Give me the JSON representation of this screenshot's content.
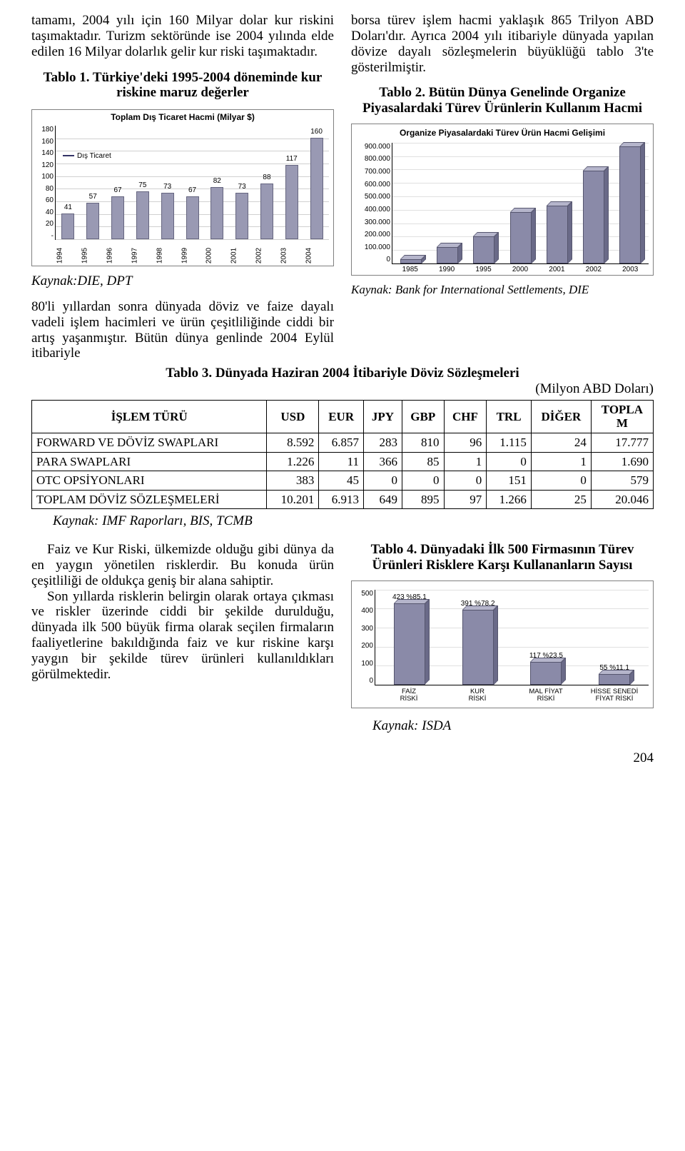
{
  "left_intro": "tamamı, 2004 yılı için 160 Milyar dolar kur riskini taşımaktadır. Turizm sektöründe ise 2004 yılında elde edilen 16 Milyar dolarlık gelir kur riski taşımaktadır.",
  "tablo1_heading": "Tablo 1. Türkiye'deki 1995-2004 döneminde kur riskine maruz değerler",
  "chart1": {
    "title": "Toplam Dış Ticaret Hacmi (Milyar $)",
    "legend": "Dış Ticaret",
    "ymax": 180,
    "ystep": 20,
    "y_ticks": [
      "180",
      "160",
      "140",
      "120",
      "100",
      "80",
      "60",
      "40",
      "20",
      "-"
    ],
    "x_labels": [
      "1994",
      "1995",
      "1996",
      "1997",
      "1998",
      "1999",
      "2000",
      "2001",
      "2002",
      "2003",
      "2004"
    ],
    "values": [
      41,
      57,
      67,
      75,
      73,
      67,
      82,
      73,
      88,
      117,
      160
    ]
  },
  "kaynak1": "Kaynak:DIE, DPT",
  "left_body": "80'li yıllardan sonra dünyada döviz ve faize dayalı vadeli işlem hacimleri ve ürün çeşitliliğinde ciddi bir artış yaşanmıştır. Bütün dünya genlinde 2004 Eylül itibariyle",
  "right_intro": "borsa türev işlem hacmi yaklaşık 865 Trilyon ABD Doları'dır. Ayrıca 2004 yılı itibariyle dünyada yapılan dövize dayalı sözleşmelerin büyüklüğü tablo 3'te gösterilmiştir.",
  "tablo2_heading": "Tablo 2. Bütün Dünya Genelinde Organize Piyasalardaki Türev Ürünlerin Kullanım Hacmi",
  "chart2": {
    "title": "Organize Piyasalardaki Türev Ürün Hacmi Gelişimi",
    "y_ticks": [
      "900.000",
      "800.000",
      "700.000",
      "600.000",
      "500.000",
      "400.000",
      "300.000",
      "200.000",
      "100.000",
      "0"
    ],
    "ymax": 900,
    "x_labels": [
      "1985",
      "1990",
      "1995",
      "2000",
      "2001",
      "2002",
      "2003"
    ],
    "values": [
      30,
      120,
      200,
      380,
      430,
      690,
      870
    ]
  },
  "kaynak2": "Kaynak: Bank for International Settlements, DIE",
  "tablo3_heading": "Tablo 3. Dünyada Haziran 2004 İtibariyle Döviz Sözleşmeleri",
  "tablo3_unit": "(Milyon ABD Doları)",
  "table3": {
    "columns": [
      "İŞLEM TÜRÜ",
      "USD",
      "EUR",
      "JPY",
      "GBP",
      "CHF",
      "TRL",
      "DİĞER",
      "TOPLAM"
    ],
    "rows": [
      [
        "FORWARD VE DÖVİZ SWAPLARI",
        "8.592",
        "6.857",
        "283",
        "810",
        "96",
        "1.115",
        "24",
        "17.777"
      ],
      [
        "PARA SWAPLARI",
        "1.226",
        "11",
        "366",
        "85",
        "1",
        "0",
        "1",
        "1.690"
      ],
      [
        "OTC OPSİYONLARI",
        "383",
        "45",
        "0",
        "0",
        "0",
        "151",
        "0",
        "579"
      ],
      [
        "TOPLAM DÖVİZ SÖZLEŞMELERİ",
        "10.201",
        "6.913",
        "649",
        "895",
        "97",
        "1.266",
        "25",
        "20.046"
      ]
    ]
  },
  "kaynak3": "Kaynak: IMF Raporları, BIS, TCMB",
  "bottom_left_p1": "Faiz ve Kur Riski, ülkemizde olduğu gibi dünya da en yaygın yönetilen risklerdir. Bu konuda ürün çeşitliliği de oldukça geniş bir alana sahiptir.",
  "bottom_left_p2": "Son yıllarda risklerin belirgin olarak ortaya çıkması ve riskler üzerinde ciddi bir şekilde durulduğu, dünyada ilk 500 büyük firma olarak seçilen firmaların faaliyetlerine bakıldığında faiz ve kur riskine karşı yaygın bir şekilde türev ürünleri kullanıldıkları görülmektedir.",
  "tablo4_heading": "Tablo 4. Dünyadaki İlk 500 Firmasının Türev Ürünleri Risklere Karşı Kullananların Sayısı",
  "chart4": {
    "y_ticks": [
      "500",
      "400",
      "300",
      "200",
      "100",
      "0"
    ],
    "ymax": 500,
    "x_labels": [
      "FAİZ RİSKİ",
      "KUR RİSKİ",
      "MAL FİYAT RİSKİ",
      "HİSSE SENEDİ FİYAT RİSKİ"
    ],
    "values": [
      423,
      391,
      117,
      55
    ],
    "bar_labels": [
      "423 %85.1",
      "391 %78.2",
      "117 %23.5",
      "55 %11.1"
    ]
  },
  "kaynak4": "Kaynak: ISDA",
  "page_number": "204"
}
